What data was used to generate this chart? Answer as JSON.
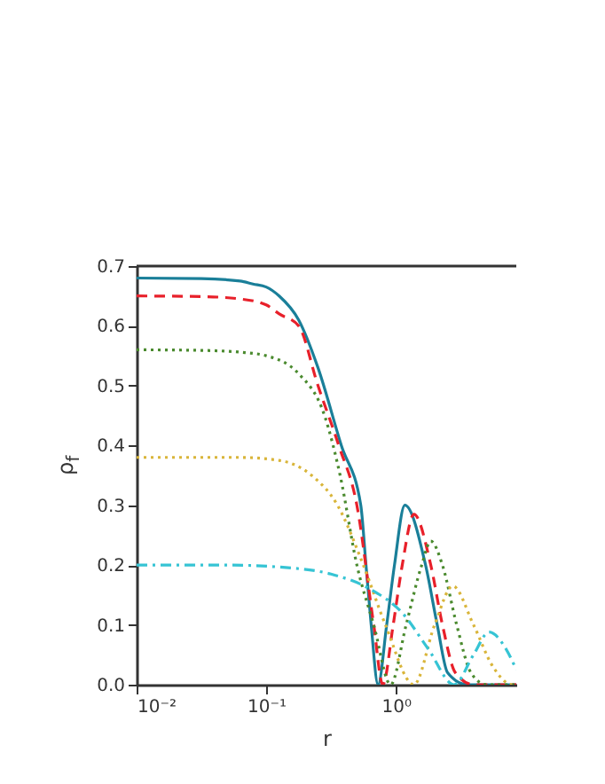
{
  "chart_data": {
    "type": "line",
    "xlabel": "r",
    "ylabel": "ρ$_{f}$",
    "log": "x",
    "grid": false,
    "marker": "none",
    "xlim": [
      0.01,
      8.511
    ],
    "ylim": [
      0,
      0.7
    ],
    "xticks": [
      {
        "value": 0.01,
        "label": "10⁻²"
      },
      {
        "value": 0.1,
        "label": "10⁻¹"
      },
      {
        "value": 1,
        "label": "10⁰"
      }
    ],
    "yticks": [
      {
        "value": 0,
        "label": "0.0"
      },
      0.1,
      0.2,
      0.3,
      0.4,
      0.5,
      0.6,
      0.7
    ],
    "series": [
      {
        "color": "#1a7f99",
        "line_style": "solid",
        "x": [
          0.01,
          0.0316,
          0.063,
          0.079,
          0.1,
          0.126,
          0.178,
          0.251,
          0.38,
          0.537,
          0.589,
          0.646,
          0.73,
          0.851,
          0.977,
          1.175,
          1.698,
          2.089,
          2.512,
          3.548,
          8.511
        ],
        "values": [
          0.68,
          0.679,
          0.675,
          0.67,
          0.665,
          0.65,
          0.61,
          0.53,
          0.4,
          0.3,
          0.2,
          0.1,
          0,
          0.1,
          0.2,
          0.3,
          0.2,
          0.1,
          0.02,
          0,
          0
        ]
      },
      {
        "color": "#e8202a",
        "line_style": "dashed",
        "x": [
          0.01,
          0.0316,
          0.063,
          0.1,
          0.126,
          0.178,
          0.251,
          0.363,
          0.501,
          0.676,
          0.794,
          0.955,
          1.122,
          1.38,
          1.862,
          2.291,
          2.884,
          3.981,
          8.511
        ],
        "values": [
          0.65,
          0.649,
          0.645,
          0.635,
          0.62,
          0.6,
          0.5,
          0.4,
          0.3,
          0.1,
          0,
          0.1,
          0.2,
          0.285,
          0.2,
          0.1,
          0.02,
          0,
          0
        ]
      },
      {
        "color": "#4a8a2e",
        "line_style": "dotted",
        "x": [
          0.01,
          0.0316,
          0.063,
          0.1,
          0.178,
          0.282,
          0.372,
          0.501,
          0.676,
          0.912,
          1.202,
          1.585,
          1.862,
          2.291,
          2.951,
          3.802,
          5.012,
          8.511
        ],
        "values": [
          0.56,
          0.559,
          0.556,
          0.55,
          0.52,
          0.45,
          0.35,
          0.2,
          0.1,
          0,
          0.1,
          0.2,
          0.24,
          0.2,
          0.1,
          0.02,
          0,
          0
        ]
      },
      {
        "color": "#d9b53a",
        "line_style": "dotted",
        "x": [
          0.01,
          0.063,
          0.126,
          0.224,
          0.355,
          0.562,
          0.832,
          1.38,
          1.995,
          2.754,
          3.981,
          5.623,
          7.943,
          8.511
        ],
        "values": [
          0.38,
          0.38,
          0.375,
          0.35,
          0.3,
          0.2,
          0.1,
          0,
          0.1,
          0.165,
          0.1,
          0.03,
          0,
          0
        ]
      },
      {
        "color": "#36c4d4",
        "line_style": "dashdot",
        "x": [
          0.01,
          0.05,
          0.158,
          0.316,
          0.631,
          1.122,
          1.778,
          2.818,
          3.981,
          5.248,
          7.079,
          8.511
        ],
        "values": [
          0.2,
          0.2,
          0.195,
          0.185,
          0.16,
          0.12,
          0.06,
          0,
          0.05,
          0.088,
          0.06,
          0.025
        ]
      }
    ]
  }
}
